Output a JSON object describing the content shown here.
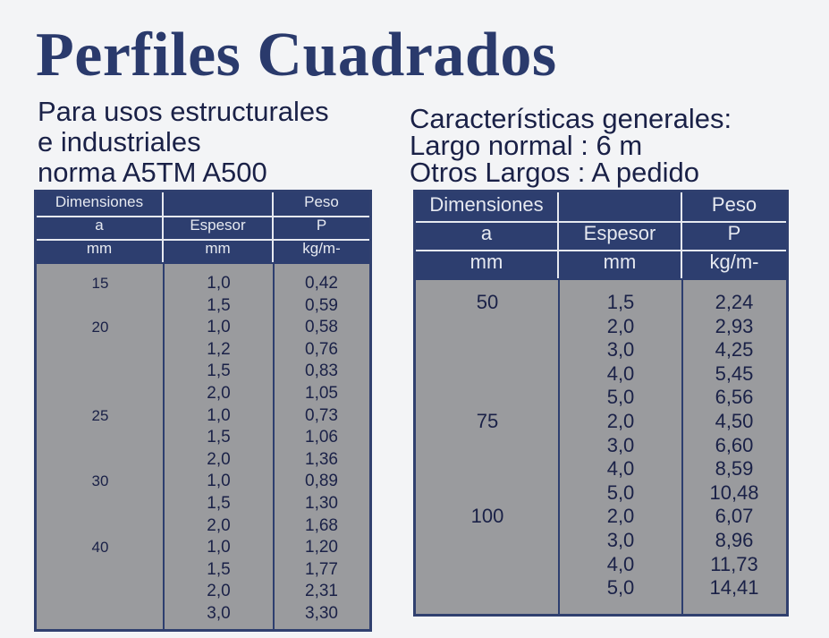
{
  "title": "Perfiles Cuadrados",
  "subtitle": [
    "Para usos estructurales",
    "e industriales",
    "norma A5TM A500"
  ],
  "features": [
    "Características generales:",
    "Largo normal : 6 m",
    "Otros Largos : A pedido"
  ],
  "table_left": {
    "header": [
      [
        "Dimensiones",
        "",
        "Peso"
      ],
      [
        "a",
        "Espesor",
        "P"
      ],
      [
        "mm",
        "mm",
        "kg/m-"
      ]
    ],
    "rows": [
      [
        "15",
        "1,0",
        "0,42"
      ],
      [
        "",
        "1,5",
        "0,59"
      ],
      [
        "20",
        "1,0",
        "0,58"
      ],
      [
        "",
        "1,2",
        "0,76"
      ],
      [
        "",
        "1,5",
        "0,83"
      ],
      [
        "",
        "2,0",
        "1,05"
      ],
      [
        "25",
        "1,0",
        "0,73"
      ],
      [
        "",
        "1,5",
        "1,06"
      ],
      [
        "",
        "2,0",
        "1,36"
      ],
      [
        "30",
        "1,0",
        "0,89"
      ],
      [
        "",
        "1,5",
        "1,30"
      ],
      [
        "",
        "2,0",
        "1,68"
      ],
      [
        "40",
        "1,0",
        "1,20"
      ],
      [
        "",
        "1,5",
        "1,77"
      ],
      [
        "",
        "2,0",
        "2,31"
      ],
      [
        "",
        "3,0",
        "3,30"
      ]
    ]
  },
  "table_right": {
    "header": [
      [
        "Dimensiones",
        "",
        "Peso"
      ],
      [
        "a",
        "Espesor",
        "P"
      ],
      [
        "mm",
        "mm",
        "kg/m-"
      ]
    ],
    "rows": [
      [
        "50",
        "1,5",
        "2,24"
      ],
      [
        "",
        "2,0",
        "2,93"
      ],
      [
        "",
        "3,0",
        "4,25"
      ],
      [
        "",
        "4,0",
        "5,45"
      ],
      [
        "",
        "5,0",
        "6,56"
      ],
      [
        "75",
        "2,0",
        "4,50"
      ],
      [
        "",
        "3,0",
        "6,60"
      ],
      [
        "",
        "4,0",
        "8,59"
      ],
      [
        "",
        "5,0",
        "10,48"
      ],
      [
        "100",
        "2,0",
        "6,07"
      ],
      [
        "",
        "3,0",
        "8,96"
      ],
      [
        "",
        "4,0",
        "11,73"
      ],
      [
        "",
        "5,0",
        "14,41"
      ]
    ]
  }
}
